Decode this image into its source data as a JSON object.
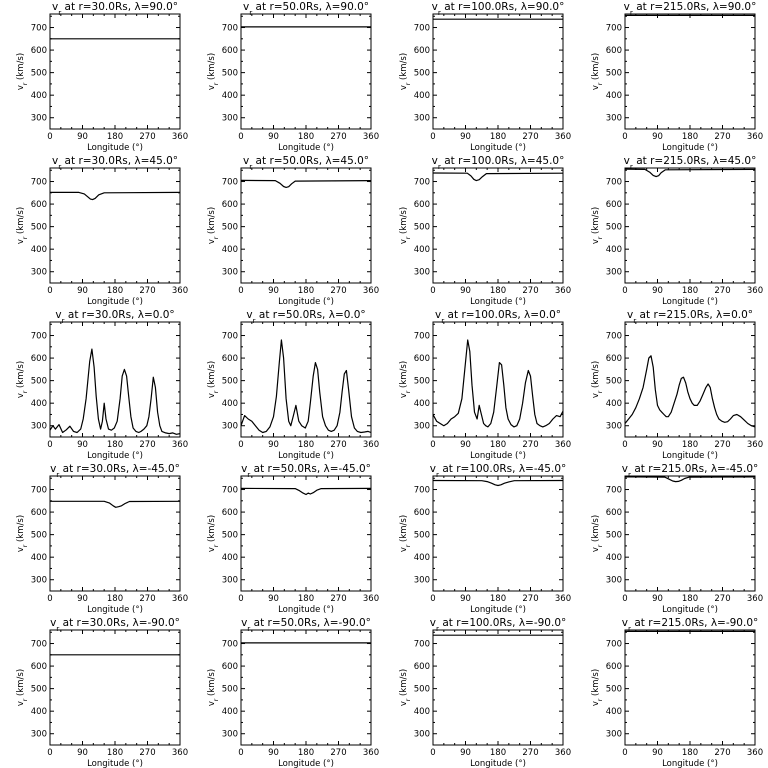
{
  "chart_data": {
    "type": "line",
    "grid": false,
    "legend": "none",
    "layout": "5 rows x 4 columns",
    "title_prefix": "v",
    "title_subscript": "r",
    "title_at": "at",
    "title_lambda_symbol": "λ",
    "xlabel": "Longitude",
    "xunit": "(°)",
    "ylabel": "v",
    "ylabel_subscript": "r",
    "yunit": "(km/s)",
    "xlim": [
      0,
      360
    ],
    "ylim": [
      250,
      760
    ],
    "xticks": [
      "0",
      "90",
      "180",
      "270",
      "360"
    ],
    "yticks": [
      "300",
      "400",
      "500",
      "600",
      "700"
    ],
    "radii": [
      "30.0",
      "50.0",
      "100.0",
      "215.0"
    ],
    "latitudes": [
      "90.0",
      "45.0",
      "0.0",
      "-45.0",
      "-90.0"
    ],
    "title_format": "r={r}Rs, λ={lat}°",
    "panels": [
      {
        "r": "30.0",
        "lat": "90.0",
        "x": [
          0,
          360
        ],
        "y": [
          650,
          650
        ]
      },
      {
        "r": "50.0",
        "lat": "90.0",
        "x": [
          0,
          360
        ],
        "y": [
          703,
          703
        ]
      },
      {
        "r": "100.0",
        "lat": "90.0",
        "x": [
          0,
          360
        ],
        "y": [
          737,
          737
        ]
      },
      {
        "r": "215.0",
        "lat": "90.0",
        "x": [
          0,
          360
        ],
        "y": [
          754,
          754
        ]
      },
      {
        "r": "30.0",
        "lat": "45.0",
        "x": [
          0,
          80,
          95,
          105,
          112,
          118,
          125,
          135,
          150,
          360
        ],
        "y": [
          652,
          652,
          645,
          632,
          622,
          620,
          625,
          641,
          650,
          652
        ]
      },
      {
        "r": "50.0",
        "lat": "45.0",
        "x": [
          0,
          95,
          108,
          118,
          125,
          132,
          140,
          150,
          360
        ],
        "y": [
          705,
          704,
          692,
          678,
          674,
          677,
          690,
          702,
          704
        ]
      },
      {
        "r": "100.0",
        "lat": "45.0",
        "x": [
          0,
          95,
          105,
          113,
          120,
          128,
          137,
          148,
          360
        ],
        "y": [
          738,
          737,
          725,
          710,
          704,
          708,
          722,
          735,
          737
        ]
      },
      {
        "r": "215.0",
        "lat": "45.0",
        "x": [
          0,
          55,
          68,
          78,
          86,
          93,
          100,
          112,
          360
        ],
        "y": [
          755,
          754,
          742,
          727,
          722,
          726,
          739,
          752,
          754
        ]
      },
      {
        "r": "30.0",
        "lat": "0.0",
        "x": [
          0,
          8,
          15,
          25,
          35,
          45,
          55,
          65,
          75,
          85,
          92,
          100,
          110,
          116,
          122,
          128,
          134,
          140,
          145,
          150,
          155,
          162,
          170,
          178,
          186,
          194,
          200,
          206,
          212,
          218,
          224,
          230,
          238,
          246,
          252,
          260,
          268,
          274,
          280,
          286,
          292,
          298,
          304,
          310,
          320,
          330,
          340,
          350,
          360
        ],
        "y": [
          280,
          300,
          285,
          305,
          270,
          282,
          298,
          275,
          270,
          285,
          330,
          420,
          585,
          640,
          560,
          430,
          330,
          285,
          320,
          400,
          330,
          285,
          280,
          290,
          320,
          420,
          520,
          550,
          520,
          430,
          340,
          290,
          275,
          270,
          275,
          285,
          300,
          340,
          420,
          515,
          470,
          360,
          300,
          275,
          268,
          265,
          268,
          262,
          265
        ]
      },
      {
        "r": "50.0",
        "lat": "0.0",
        "x": [
          0,
          10,
          20,
          30,
          40,
          50,
          60,
          70,
          80,
          90,
          98,
          106,
          112,
          118,
          125,
          132,
          138,
          145,
          152,
          160,
          168,
          178,
          186,
          192,
          200,
          206,
          212,
          218,
          226,
          234,
          242,
          250,
          258,
          266,
          274,
          280,
          286,
          292,
          298,
          306,
          314,
          322,
          332,
          342,
          352,
          360
        ],
        "y": [
          300,
          345,
          330,
          320,
          300,
          280,
          270,
          275,
          295,
          340,
          430,
          580,
          680,
          600,
          420,
          320,
          300,
          345,
          390,
          320,
          300,
          290,
          320,
          400,
          520,
          580,
          550,
          450,
          340,
          300,
          280,
          275,
          280,
          300,
          360,
          450,
          530,
          545,
          460,
          340,
          290,
          275,
          270,
          272,
          275,
          270
        ]
      },
      {
        "r": "100.0",
        "lat": "0.0",
        "x": [
          0,
          10,
          20,
          30,
          40,
          50,
          60,
          70,
          80,
          88,
          96,
          102,
          108,
          115,
          122,
          128,
          134,
          140,
          146,
          152,
          160,
          168,
          176,
          184,
          190,
          196,
          202,
          208,
          216,
          224,
          232,
          240,
          248,
          256,
          264,
          270,
          276,
          282,
          288,
          296,
          304,
          312,
          322,
          332,
          342,
          352,
          360
        ],
        "y": [
          350,
          320,
          310,
          300,
          310,
          330,
          340,
          355,
          420,
          550,
          680,
          630,
          480,
          360,
          330,
          390,
          350,
          310,
          300,
          295,
          310,
          360,
          470,
          580,
          570,
          480,
          380,
          330,
          305,
          295,
          300,
          330,
          400,
          490,
          545,
          520,
          430,
          350,
          310,
          300,
          295,
          300,
          310,
          330,
          345,
          340,
          365
        ]
      },
      {
        "r": "215.0",
        "lat": "0.0",
        "x": [
          0,
          10,
          20,
          30,
          40,
          50,
          60,
          66,
          72,
          78,
          84,
          90,
          96,
          102,
          108,
          114,
          120,
          128,
          136,
          144,
          150,
          156,
          162,
          168,
          174,
          180,
          186,
          192,
          200,
          208,
          216,
          224,
          230,
          236,
          242,
          248,
          254,
          260,
          268,
          276,
          284,
          292,
          300,
          310,
          320,
          330,
          340,
          350,
          360
        ],
        "y": [
          310,
          330,
          350,
          380,
          420,
          470,
          550,
          600,
          610,
          560,
          460,
          390,
          370,
          360,
          350,
          340,
          340,
          360,
          400,
          440,
          480,
          510,
          515,
          490,
          450,
          420,
          400,
          390,
          390,
          410,
          440,
          470,
          485,
          470,
          420,
          380,
          350,
          330,
          320,
          315,
          318,
          330,
          345,
          350,
          340,
          325,
          310,
          300,
          295
        ]
      },
      {
        "r": "30.0",
        "lat": "-45.0",
        "x": [
          0,
          150,
          165,
          175,
          182,
          190,
          198,
          208,
          220,
          360
        ],
        "y": [
          648,
          648,
          640,
          628,
          621,
          624,
          628,
          638,
          647,
          648
        ]
      },
      {
        "r": "50.0",
        "lat": "-45.0",
        "x": [
          0,
          150,
          162,
          172,
          180,
          186,
          192,
          200,
          210,
          222,
          360
        ],
        "y": [
          705,
          704,
          695,
          684,
          678,
          684,
          680,
          686,
          697,
          704,
          705
        ]
      },
      {
        "r": "100.0",
        "lat": "-45.0",
        "x": [
          0,
          135,
          150,
          162,
          172,
          180,
          188,
          198,
          210,
          225,
          360
        ],
        "y": [
          740,
          739,
          735,
          728,
          721,
          718,
          721,
          728,
          734,
          739,
          740
        ]
      },
      {
        "r": "215.0",
        "lat": "-45.0",
        "x": [
          0,
          110,
          122,
          132,
          140,
          148,
          156,
          165,
          178,
          360
        ],
        "y": [
          756,
          755,
          746,
          738,
          735,
          736,
          741,
          749,
          755,
          756
        ]
      },
      {
        "r": "30.0",
        "lat": "-90.0",
        "x": [
          0,
          360
        ],
        "y": [
          650,
          650
        ]
      },
      {
        "r": "50.0",
        "lat": "-90.0",
        "x": [
          0,
          360
        ],
        "y": [
          703,
          703
        ]
      },
      {
        "r": "100.0",
        "lat": "-90.0",
        "x": [
          0,
          360
        ],
        "y": [
          737,
          737
        ]
      },
      {
        "r": "215.0",
        "lat": "-90.0",
        "x": [
          0,
          360
        ],
        "y": [
          754,
          754
        ]
      }
    ]
  }
}
